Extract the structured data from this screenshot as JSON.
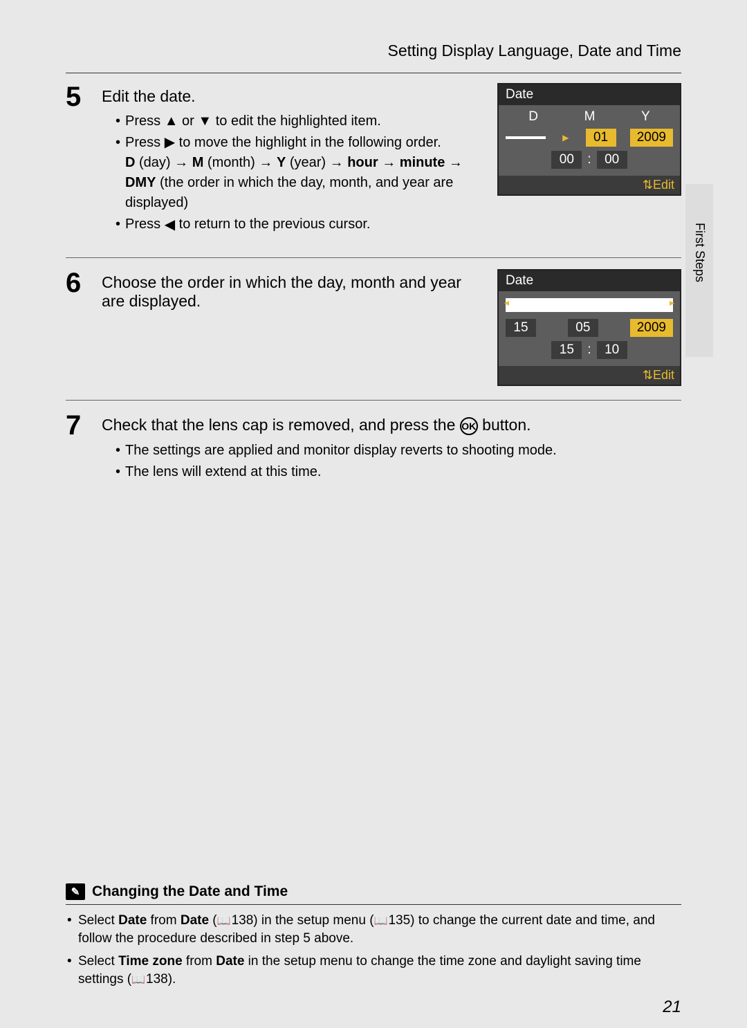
{
  "header": {
    "title": "Setting Display Language, Date and Time"
  },
  "side_tab": "First Steps",
  "page_number": "21",
  "glyphs": {
    "tri_up": "▲",
    "tri_down": "▼",
    "tri_left": "◀",
    "tri_right": "▶",
    "arrow_r": "→",
    "ok": "OK",
    "updown": "⇅"
  },
  "steps": {
    "s5": {
      "num": "5",
      "title": "Edit the date.",
      "b1_pre": "Press ",
      "b1_mid": " or ",
      "b1_post": " to edit the highlighted item.",
      "b2_pre": "Press ",
      "b2_post": " to move the highlight in the following order.",
      "seq": {
        "D": "D",
        "day": " (day) ",
        "M": "M",
        "month": " (month) ",
        "Y": "Y",
        "year": " (year) ",
        "hour": "hour",
        "minute": "minute",
        "DMY": "DMY",
        "dmy_desc": " (the order in which the day, month, and year are displayed)"
      },
      "b3_pre": "Press ",
      "b3_post": " to return to the previous cursor."
    },
    "s6": {
      "num": "6",
      "title": "Choose the order in which the day, month and year are displayed."
    },
    "s7": {
      "num": "7",
      "title_pre": "Check that the lens cap is removed, and press the ",
      "title_post": " button.",
      "b1": "The settings are applied and monitor display reverts to shooting mode.",
      "b2": "The lens will extend at this time."
    }
  },
  "lcd1": {
    "title": "Date",
    "D": "D",
    "M": "M",
    "Y": "Y",
    "day": "",
    "month": "01",
    "year": "2009",
    "hour": "00",
    "minute": "00",
    "edit": "Edit",
    "colon": ":"
  },
  "lcd2": {
    "title": "Date",
    "day": "15",
    "month": "05",
    "year": "2009",
    "hour": "15",
    "minute": "10",
    "edit": "Edit",
    "colon": ":"
  },
  "note": {
    "heading": "Changing the Date and Time",
    "b1_a": "Select ",
    "b1_b": "Date",
    "b1_c": " from ",
    "b1_d": "Date",
    "b1_e": " (",
    "b1_ref1": "138",
    "b1_f": ") in the setup menu (",
    "b1_ref2": "135",
    "b1_g": ") to change the current date and time, and follow the procedure described in step 5 above.",
    "b2_a": "Select ",
    "b2_b": "Time zone",
    "b2_c": " from ",
    "b2_d": "Date",
    "b2_e": " in the setup menu to change the time zone and daylight saving time settings (",
    "b2_ref": "138",
    "b2_f": ")."
  }
}
